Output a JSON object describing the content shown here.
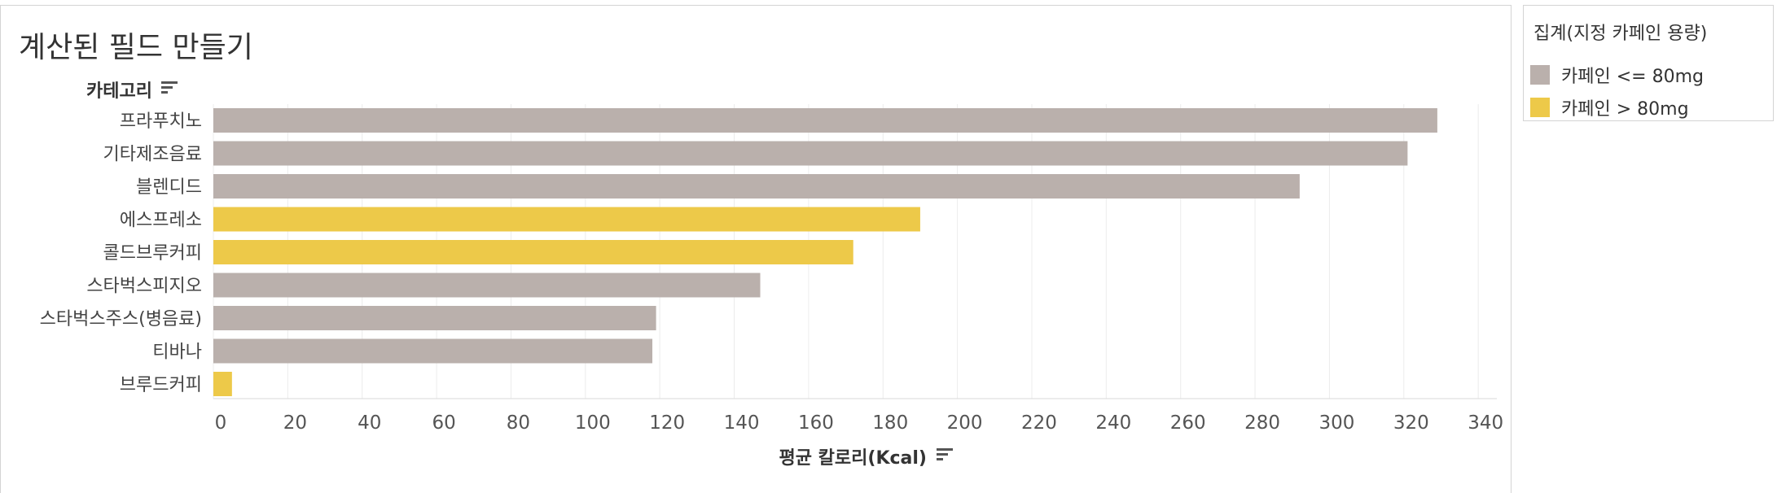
{
  "title": "계산된 필드 만들기",
  "legend": {
    "title": "집계(지정 카페인 용량)",
    "items": [
      {
        "label": "카페인 <= 80mg",
        "color": "#bab0ac"
      },
      {
        "label": "카페인 > 80mg",
        "color": "#edc949"
      }
    ]
  },
  "chart_data": {
    "type": "bar",
    "orientation": "horizontal",
    "ylabel": "카테고리",
    "xlabel": "평균 칼로리(Kcal)",
    "xlim": [
      0,
      345
    ],
    "x_ticks": [
      0,
      20,
      40,
      60,
      80,
      100,
      120,
      140,
      160,
      180,
      200,
      220,
      240,
      260,
      280,
      300,
      320,
      340
    ],
    "grid": true,
    "legend_position": "right",
    "categories": [
      "프라푸치노",
      "기타제조음료",
      "블렌디드",
      "에스프레소",
      "콜드브루커피",
      "스타벅스피지오",
      "스타벅스주스(병음료)",
      "티바나",
      "브루드커피"
    ],
    "values": [
      329,
      321,
      292,
      190,
      172,
      147,
      119,
      118,
      5
    ],
    "groups": [
      "카페인 <= 80mg",
      "카페인 <= 80mg",
      "카페인 <= 80mg",
      "카페인 > 80mg",
      "카페인 > 80mg",
      "카페인 <= 80mg",
      "카페인 <= 80mg",
      "카페인 <= 80mg",
      "카페인 > 80mg"
    ]
  }
}
